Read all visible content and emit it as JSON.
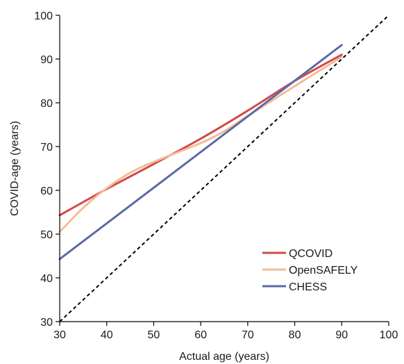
{
  "chart_data": {
    "type": "line",
    "title": "",
    "xlabel": "Actual age (years)",
    "ylabel": "COVID-age (years)",
    "xlim": [
      30,
      100
    ],
    "ylim": [
      30,
      100
    ],
    "xticks": [
      30,
      40,
      50,
      60,
      70,
      80,
      90,
      100
    ],
    "yticks": [
      30,
      40,
      50,
      60,
      70,
      80,
      90,
      100
    ],
    "grid": false,
    "legend_position": "bottom-right",
    "reference_line": {
      "style": "dashed",
      "color": "#000000",
      "x": [
        30,
        100
      ],
      "y": [
        30,
        100
      ]
    },
    "series": [
      {
        "name": "QCOVID",
        "color": "#d04a4a",
        "x": [
          30,
          40,
          50,
          60,
          70,
          80,
          90
        ],
        "y": [
          54.3,
          60.3,
          66.0,
          71.8,
          78.2,
          85.0,
          91.0
        ]
      },
      {
        "name": "OpenSAFELY",
        "color": "#f3bd96",
        "x": [
          30,
          35,
          40,
          45,
          50,
          60,
          65,
          70,
          80,
          90
        ],
        "y": [
          50.5,
          56.0,
          60.5,
          64.0,
          66.5,
          70.8,
          73.5,
          77.0,
          83.8,
          90.5
        ]
      },
      {
        "name": "CHESS",
        "color": "#5a6aa5",
        "x": [
          30,
          90
        ],
        "y": [
          44.3,
          93.2
        ]
      }
    ]
  }
}
